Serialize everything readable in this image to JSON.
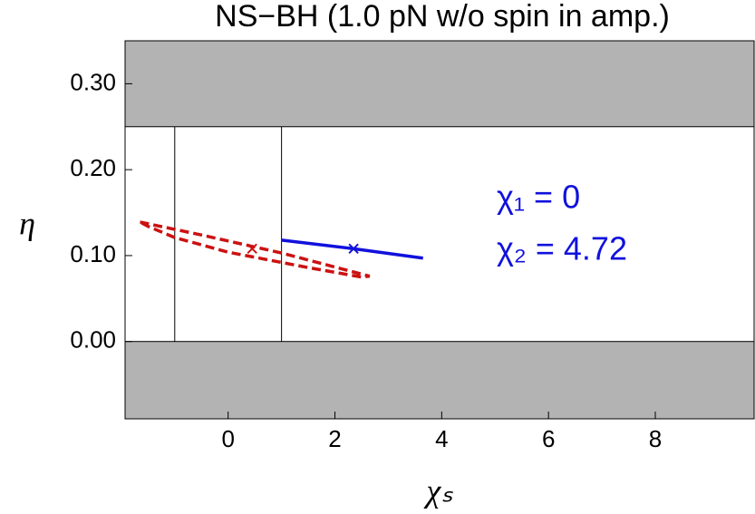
{
  "chart_data": {
    "type": "line",
    "title": "NS−BH (1.0 pN w/o spin in amp.)",
    "x_label": "χₛ",
    "y_label": "η",
    "xlim": [
      -1.93,
      9.85
    ],
    "ylim": [
      -0.09,
      0.35
    ],
    "xticks": [
      0,
      2,
      4,
      6,
      8
    ],
    "yticks": [
      {
        "value": 0,
        "label": "0.00"
      },
      {
        "value": 0.1,
        "label": "0.10"
      },
      {
        "value": 0.2,
        "label": "0.20"
      },
      {
        "value": 0.3,
        "label": "0.30"
      }
    ],
    "shaded_y": [
      [
        0.25,
        0.35
      ],
      [
        -0.09,
        0
      ]
    ],
    "vlines": [
      -1,
      1
    ],
    "series": [
      {
        "color": "#cc1111",
        "dash": true,
        "x": [
          -1.65,
          -0.5,
          0,
          1,
          2.65,
          2.5,
          1.5,
          0,
          -1.0,
          -1.5,
          -1.65
        ],
        "values": [
          0.139,
          0.124,
          0.117,
          0.103,
          0.076,
          0.075,
          0.086,
          0.104,
          0.121,
          0.134,
          0.139
        ],
        "marker": [
          0.45,
          0.108
        ]
      },
      {
        "color": "#1111dd",
        "dash": false,
        "x": [
          1.0,
          2.35,
          3.65
        ],
        "values": [
          0.118,
          0.108,
          0.097
        ],
        "marker": [
          2.35,
          0.108
        ]
      }
    ],
    "annotations": [
      "χ₁ = 0",
      "χ₂ = 4.72"
    ],
    "annotation_color": "#1111dd"
  }
}
